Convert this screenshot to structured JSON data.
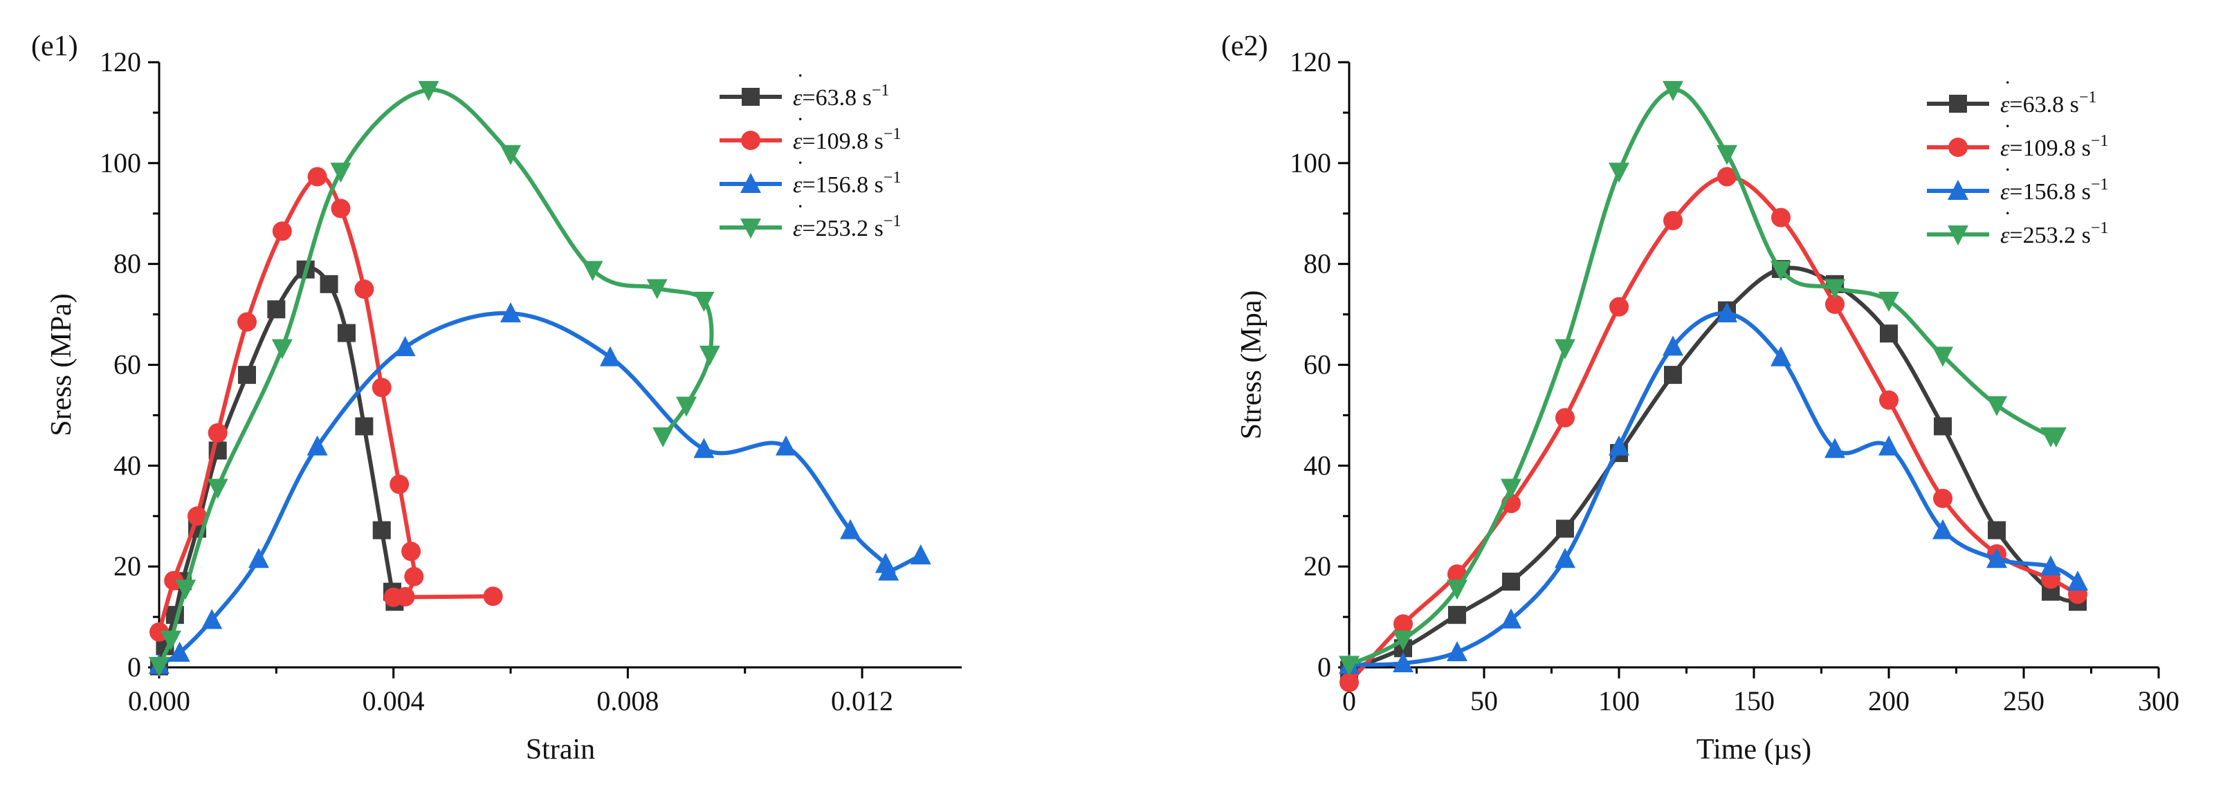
{
  "colors": {
    "s1": "#3d3d3d",
    "s2": "#ec3b3b",
    "s3": "#1e6fd9",
    "s4": "#3aa35c"
  },
  "chart_data": [
    {
      "type": "line",
      "panel_label": "(e1)",
      "title": "",
      "xlabel": "Strain",
      "ylabel": "Sress (MPa)",
      "xlim": [
        0.0,
        0.0137
      ],
      "ylim": [
        0,
        120
      ],
      "xticks": [
        0.0,
        0.004,
        0.008,
        0.012
      ],
      "xtick_labels": [
        "0.000",
        "0.004",
        "0.008",
        "0.012"
      ],
      "yticks": [
        0,
        20,
        40,
        60,
        80,
        100,
        120
      ],
      "ytick_labels": [
        "0",
        "20",
        "40",
        "60",
        "80",
        "100",
        "120"
      ],
      "legend_position": "top-right",
      "series": [
        {
          "name": "ε̇=63.8 s⁻¹",
          "legend_base": "ε",
          "legend_value": "=63.8 s",
          "legend_exp": "−1",
          "marker": "square",
          "color_key": "s1",
          "points": [
            [
              0.0,
              0.2
            ],
            [
              0.0001,
              4.2
            ],
            [
              0.00027,
              10.4
            ],
            [
              0.0004,
              17.1
            ],
            [
              0.00065,
              27.5
            ],
            [
              0.001,
              43.0
            ],
            [
              0.0015,
              58.0
            ],
            [
              0.002,
              71.0
            ],
            [
              0.0025,
              78.9
            ],
            [
              0.0029,
              76.0
            ],
            [
              0.0032,
              66.3
            ],
            [
              0.0035,
              47.8
            ],
            [
              0.0038,
              27.2
            ],
            [
              0.00398,
              15.0
            ],
            [
              0.00402,
              13.0
            ]
          ]
        },
        {
          "name": "ε̇=109.8 s⁻¹",
          "legend_base": "ε",
          "legend_value": "=109.8 s",
          "legend_exp": "−1",
          "marker": "circle",
          "color_key": "s2",
          "points": [
            [
              0.0,
              7.0
            ],
            [
              0.00025,
              17.2
            ],
            [
              0.00065,
              30.0
            ],
            [
              0.001,
              46.5
            ],
            [
              0.0015,
              68.5
            ],
            [
              0.0021,
              86.5
            ],
            [
              0.0027,
              97.3
            ],
            [
              0.0031,
              91.0
            ],
            [
              0.0035,
              75.0
            ],
            [
              0.0038,
              55.5
            ],
            [
              0.0041,
              36.3
            ],
            [
              0.0043,
              23.0
            ],
            [
              0.00435,
              18.0
            ],
            [
              0.0042,
              14.0
            ],
            [
              0.004,
              13.9
            ],
            [
              0.0057,
              14.1
            ]
          ]
        },
        {
          "name": "ε̇=156.8 s⁻¹",
          "legend_base": "ε",
          "legend_value": "=156.8 s",
          "legend_exp": "−1",
          "marker": "triangle-up",
          "color_key": "s3",
          "points": [
            [
              0.0,
              0.5
            ],
            [
              0.00035,
              2.9
            ],
            [
              0.0009,
              9.4
            ],
            [
              0.0017,
              21.5
            ],
            [
              0.0027,
              43.8
            ],
            [
              0.0042,
              63.5
            ],
            [
              0.006,
              70.2
            ],
            [
              0.0077,
              61.5
            ],
            [
              0.0093,
              43.3
            ],
            [
              0.0107,
              43.8
            ],
            [
              0.0118,
              27.2
            ],
            [
              0.0124,
              20.5
            ],
            [
              0.01245,
              19.0
            ],
            [
              0.013,
              22.2
            ]
          ]
        },
        {
          "name": "ε̇=253.2 s⁻¹",
          "legend_base": "ε",
          "legend_value": "=253.2 s",
          "legend_exp": "−1",
          "marker": "triangle-down",
          "color_key": "s4",
          "points": [
            [
              0.0,
              0.3
            ],
            [
              0.0002,
              5.5
            ],
            [
              0.00045,
              15.6
            ],
            [
              0.001,
              35.6
            ],
            [
              0.0021,
              63.3
            ],
            [
              0.0031,
              98.3
            ],
            [
              0.0046,
              114.5
            ],
            [
              0.006,
              101.8
            ],
            [
              0.0074,
              78.8
            ],
            [
              0.0085,
              75.2
            ],
            [
              0.0093,
              72.7
            ],
            [
              0.0094,
              62.0
            ],
            [
              0.009,
              51.9
            ],
            [
              0.0086,
              45.8
            ]
          ]
        }
      ]
    },
    {
      "type": "line",
      "panel_label": "(e2)",
      "title": "",
      "xlabel": "Time (µs)",
      "ylabel": "Stress (Mpa)",
      "xlim": [
        0,
        300
      ],
      "ylim": [
        0,
        120
      ],
      "xticks": [
        0,
        50,
        100,
        150,
        200,
        250,
        300
      ],
      "xtick_labels": [
        "0",
        "50",
        "100",
        "150",
        "200",
        "250",
        "300"
      ],
      "yticks": [
        0,
        20,
        40,
        60,
        80,
        100,
        120
      ],
      "ytick_labels": [
        "0",
        "20",
        "40",
        "60",
        "80",
        "100",
        "120"
      ],
      "legend_position": "top-right",
      "series": [
        {
          "name": "ε̇=63.8 s⁻¹",
          "legend_base": "ε",
          "legend_value": "=63.8 s",
          "legend_exp": "−1",
          "marker": "square",
          "color_key": "s1",
          "points": [
            [
              0,
              -0.5
            ],
            [
              20,
              3.8
            ],
            [
              40,
              10.4
            ],
            [
              60,
              17.0
            ],
            [
              80,
              27.5
            ],
            [
              100,
              42.5
            ],
            [
              120,
              58.0
            ],
            [
              140,
              70.8
            ],
            [
              160,
              79.0
            ],
            [
              180,
              76.0
            ],
            [
              200,
              66.2
            ],
            [
              220,
              47.8
            ],
            [
              240,
              27.2
            ],
            [
              260,
              15.0
            ],
            [
              270,
              13.0
            ]
          ]
        },
        {
          "name": "ε̇=109.8 s⁻¹",
          "legend_base": "ε",
          "legend_value": "=109.8 s",
          "legend_exp": "−1",
          "marker": "circle",
          "color_key": "s2",
          "points": [
            [
              0,
              -3.0
            ],
            [
              20,
              8.6
            ],
            [
              40,
              18.5
            ],
            [
              60,
              32.5
            ],
            [
              80,
              49.5
            ],
            [
              100,
              71.5
            ],
            [
              120,
              88.6
            ],
            [
              140,
              97.3
            ],
            [
              160,
              89.2
            ],
            [
              180,
              72.0
            ],
            [
              200,
              53.0
            ],
            [
              220,
              33.5
            ],
            [
              240,
              22.5
            ],
            [
              260,
              17.5
            ],
            [
              270,
              14.5
            ]
          ]
        },
        {
          "name": "ε̇=156.8 s⁻¹",
          "legend_base": "ε",
          "legend_value": "=156.8 s",
          "legend_exp": "−1",
          "marker": "triangle-up",
          "color_key": "s3",
          "points": [
            [
              0,
              0.5
            ],
            [
              20,
              0.8
            ],
            [
              40,
              3.0
            ],
            [
              60,
              9.5
            ],
            [
              80,
              21.5
            ],
            [
              100,
              43.8
            ],
            [
              120,
              63.6
            ],
            [
              140,
              70.2
            ],
            [
              160,
              61.5
            ],
            [
              180,
              43.3
            ],
            [
              200,
              43.8
            ],
            [
              220,
              27.2
            ],
            [
              240,
              21.5
            ],
            [
              260,
              20.0
            ],
            [
              270,
              17.0
            ]
          ]
        },
        {
          "name": "ε̇=253.2 s⁻¹",
          "legend_base": "ε",
          "legend_value": "=253.2 s",
          "legend_exp": "−1",
          "marker": "triangle-down",
          "color_key": "s4",
          "points": [
            [
              0,
              0.5
            ],
            [
              20,
              5.5
            ],
            [
              40,
              15.6
            ],
            [
              60,
              35.6
            ],
            [
              80,
              63.3
            ],
            [
              100,
              98.3
            ],
            [
              120,
              114.5
            ],
            [
              140,
              101.8
            ],
            [
              160,
              78.8
            ],
            [
              180,
              75.2
            ],
            [
              200,
              72.7
            ],
            [
              220,
              61.8
            ],
            [
              240,
              52.0
            ],
            [
              260,
              45.8
            ],
            [
              262,
              45.8
            ]
          ]
        }
      ]
    }
  ]
}
